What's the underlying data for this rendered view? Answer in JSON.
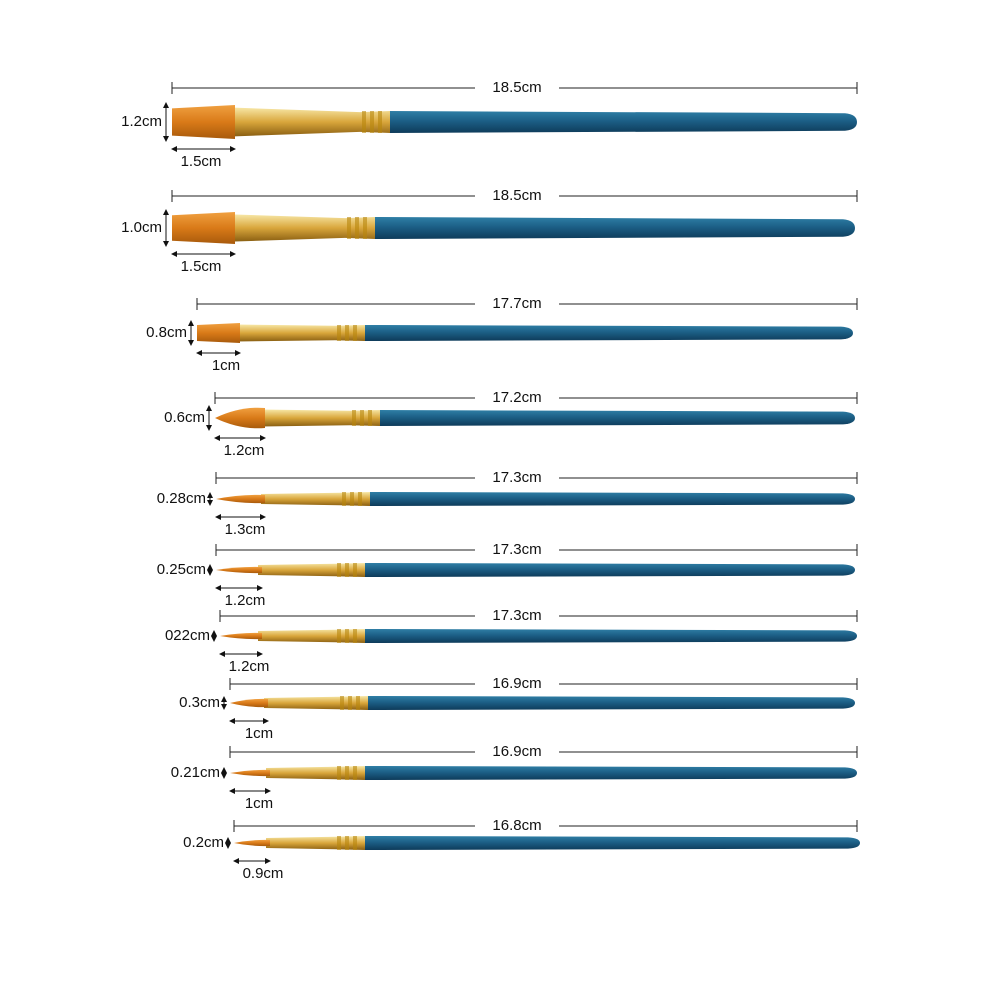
{
  "brushes": [
    {
      "length": "18.5cm",
      "width": "1.2cm",
      "head": "1.5cm"
    },
    {
      "length": "18.5cm",
      "width": "1.0cm",
      "head": "1.5cm"
    },
    {
      "length": "17.7cm",
      "width": "0.8cm",
      "head": "1cm"
    },
    {
      "length": "17.2cm",
      "width": "0.6cm",
      "head": "1.2cm"
    },
    {
      "length": "17.3cm",
      "width": "0.28cm",
      "head": "1.3cm"
    },
    {
      "length": "17.3cm",
      "width": "0.25cm",
      "head": "1.2cm"
    },
    {
      "length": "17.3cm",
      "width": "022cm",
      "head": "1.2cm"
    },
    {
      "length": "16.9cm",
      "width": "0.3cm",
      "head": "1cm"
    },
    {
      "length": "16.9cm",
      "width": "0.21cm",
      "head": "1cm"
    },
    {
      "length": "16.8cm",
      "width": "0.2cm",
      "head": "0.9cm"
    }
  ]
}
